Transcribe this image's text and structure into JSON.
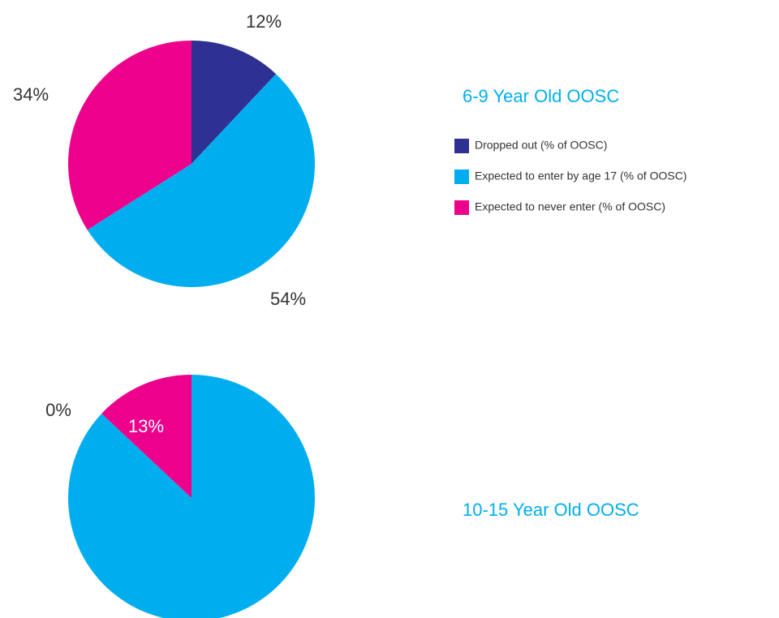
{
  "chart_data": [
    {
      "type": "pie",
      "title": "6-9 Year Old OOSC",
      "series": [
        {
          "name": "Dropped out (% of OOSC)",
          "color": "#2e3192"
        },
        {
          "name": "Expected to enter by age 17 (% of OOSC)",
          "color": "#00aeef"
        },
        {
          "name": "Expected to never enter (% of OOSC)",
          "color": "#ec008c"
        }
      ],
      "values": [
        12,
        54,
        34
      ],
      "value_labels": [
        "12%",
        "54%",
        "34%"
      ]
    },
    {
      "type": "pie",
      "title": "10-15 Year Old OOSC",
      "colors": [
        "#2e3192",
        "#00aeef",
        "#ec008c"
      ],
      "values": [
        0,
        87,
        13
      ],
      "value_labels": [
        "0%",
        null,
        "13%"
      ]
    }
  ]
}
